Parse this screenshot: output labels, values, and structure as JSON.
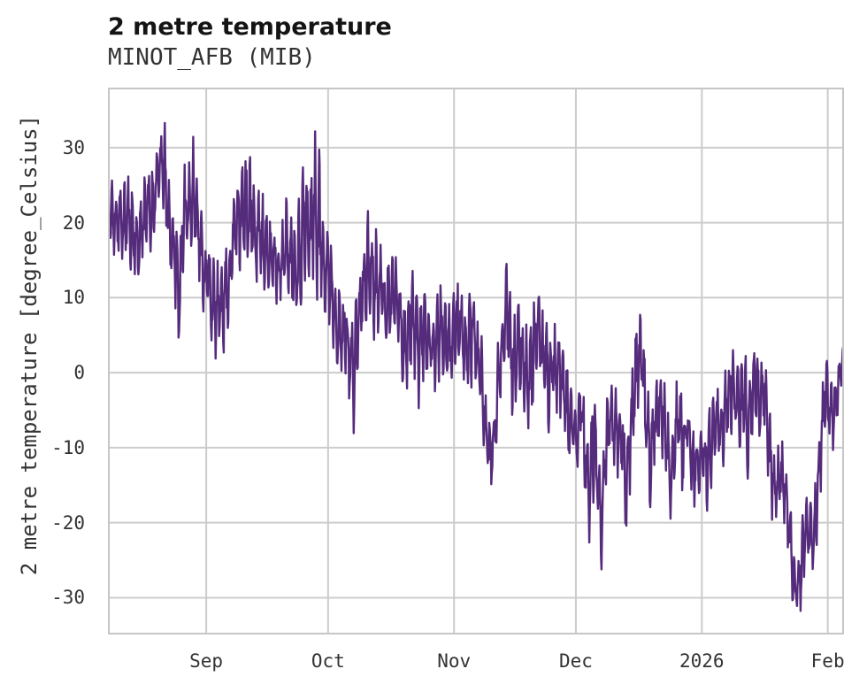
{
  "figure": {
    "title": "2 metre temperature",
    "subtitle": "MINOT_AFB (MIB)",
    "background": "#ffffff"
  },
  "chart_data": {
    "type": "line",
    "title": "2 metre temperature",
    "subtitle": "MINOT_AFB (MIB)",
    "xlabel": "",
    "ylabel": "2 metre temperature [degree_Celsius]",
    "legend": "none",
    "grid": "on",
    "line_color": "#552b7c",
    "grid_color": "#cccccc",
    "spine_color": "#c6c6c6",
    "text_color": "#333333",
    "ylim": [
      -34.9,
      38.0
    ],
    "y_ticks": [
      30,
      20,
      10,
      0,
      -10,
      -20,
      -30
    ],
    "x_range_days": 181.2,
    "x_ticks": [
      {
        "day": 24.2,
        "label": "Sep"
      },
      {
        "day": 54.2,
        "label": "Oct"
      },
      {
        "day": 85.2,
        "label": "Nov"
      },
      {
        "day": 115.2,
        "label": "Dec"
      },
      {
        "day": 146.2,
        "label": "2026"
      },
      {
        "day": 177.2,
        "label": "Feb"
      }
    ],
    "series_description": "high-frequency 2 m temperature trace; values below are per-day maxima and minima read from the plot, day 0 at left plot edge",
    "daily_high": [
      27.5,
      25,
      26,
      24,
      26,
      25,
      24,
      20,
      26,
      27,
      26,
      29,
      31,
      34.5,
      29,
      23,
      22,
      15,
      26,
      30,
      29.5,
      30,
      24,
      18,
      18,
      15,
      13,
      14,
      17.7,
      16,
      21,
      27,
      29.5,
      28,
      29,
      26,
      23,
      27,
      22,
      20,
      21,
      19,
      19,
      23,
      23.5,
      20,
      19,
      25,
      28.9,
      24,
      31.1,
      29,
      28,
      20,
      20,
      16,
      12,
      9,
      11.5,
      8,
      6,
      12,
      16,
      19,
      21.8,
      18,
      19,
      16,
      14,
      15,
      16,
      14,
      11,
      10,
      15,
      12,
      10,
      11,
      12,
      9,
      8,
      12.2,
      10,
      8,
      9,
      14.4,
      12,
      9.4,
      8,
      13.6,
      9,
      6,
      1,
      -5,
      -8,
      0,
      6,
      9.8,
      19.1,
      6,
      8.3,
      9.2,
      6,
      5,
      8,
      11.4,
      10.8,
      6,
      5,
      5.5,
      5.5,
      4,
      2,
      -1,
      -4,
      -4,
      1.5,
      -6,
      -11,
      1.5,
      -8,
      -14,
      -6,
      1,
      -2,
      -3,
      -2,
      -9,
      -4,
      3,
      6.9,
      7,
      0,
      -6,
      -1,
      0,
      -1,
      -4,
      -8,
      -4,
      -1,
      -4,
      -4.7,
      -5,
      -8,
      -9,
      -7,
      -6,
      -4,
      -3.5,
      -1,
      -3,
      1.5,
      3.5,
      2,
      0,
      3.3,
      -1,
      1,
      4.1,
      2,
      3.5,
      -3,
      -7,
      -10,
      -10,
      -10,
      -15,
      -21,
      -26,
      -23,
      -17,
      -18,
      -17,
      -13,
      -5,
      3.2,
      -2,
      -1,
      2,
      3.2
    ],
    "daily_low": [
      15,
      15,
      16,
      15,
      16,
      14,
      13,
      12.4,
      15,
      17,
      16,
      19,
      22,
      22,
      17,
      13,
      9.5,
      4.3,
      10,
      17,
      16,
      17,
      13,
      9,
      8,
      5,
      3,
      2.4,
      4,
      6,
      11,
      14,
      15,
      14,
      15,
      14,
      12,
      13,
      11,
      10,
      11,
      10,
      9,
      10,
      11,
      10,
      9,
      10,
      12,
      12,
      13,
      12,
      9,
      8,
      7,
      4,
      1,
      -0.4,
      1,
      -4,
      -7,
      0,
      4,
      7,
      7,
      6,
      7,
      6,
      4,
      5,
      6,
      4,
      -1,
      -3,
      1,
      0,
      -3,
      -1,
      0,
      -1,
      -2,
      0,
      0,
      -2,
      -1,
      -1,
      -1,
      -1.5,
      -2.4,
      -1,
      -1,
      -4,
      -9,
      -15.7,
      -15,
      -12,
      -4,
      2,
      3,
      -5,
      -5,
      -3,
      -4,
      -6.7,
      -4,
      -1,
      -2,
      -4,
      -6.7,
      -4,
      -5.9,
      -6,
      -8,
      -11,
      -12,
      -14,
      -8,
      -18,
      -22.4,
      -17,
      -20,
      -25.2,
      -18,
      -11,
      -12,
      -13,
      -12,
      -22.8,
      -16,
      -7,
      -4,
      -3,
      -14,
      -18.9,
      -11,
      -8,
      -11,
      -14,
      -20.7,
      -14,
      -11,
      -17.3,
      -9,
      -15,
      -18,
      -17,
      -17,
      -17.7,
      -14,
      -11,
      -11,
      -13.8,
      -9,
      -7,
      -9.4,
      -10,
      -7,
      -13.3,
      -9,
      -6,
      -9.9,
      -7,
      -13,
      -19,
      -22.8,
      -16,
      -20,
      -25,
      -30,
      -32.2,
      -31,
      -27,
      -23.6,
      -27,
      -23,
      -15,
      -9,
      -8.3,
      -10,
      -6,
      -3
    ],
    "synthesis": {
      "samples_per_day": 8,
      "diurnal_weight": 0.78,
      "noise_weight": 0.5,
      "noise_seed": 11
    }
  }
}
